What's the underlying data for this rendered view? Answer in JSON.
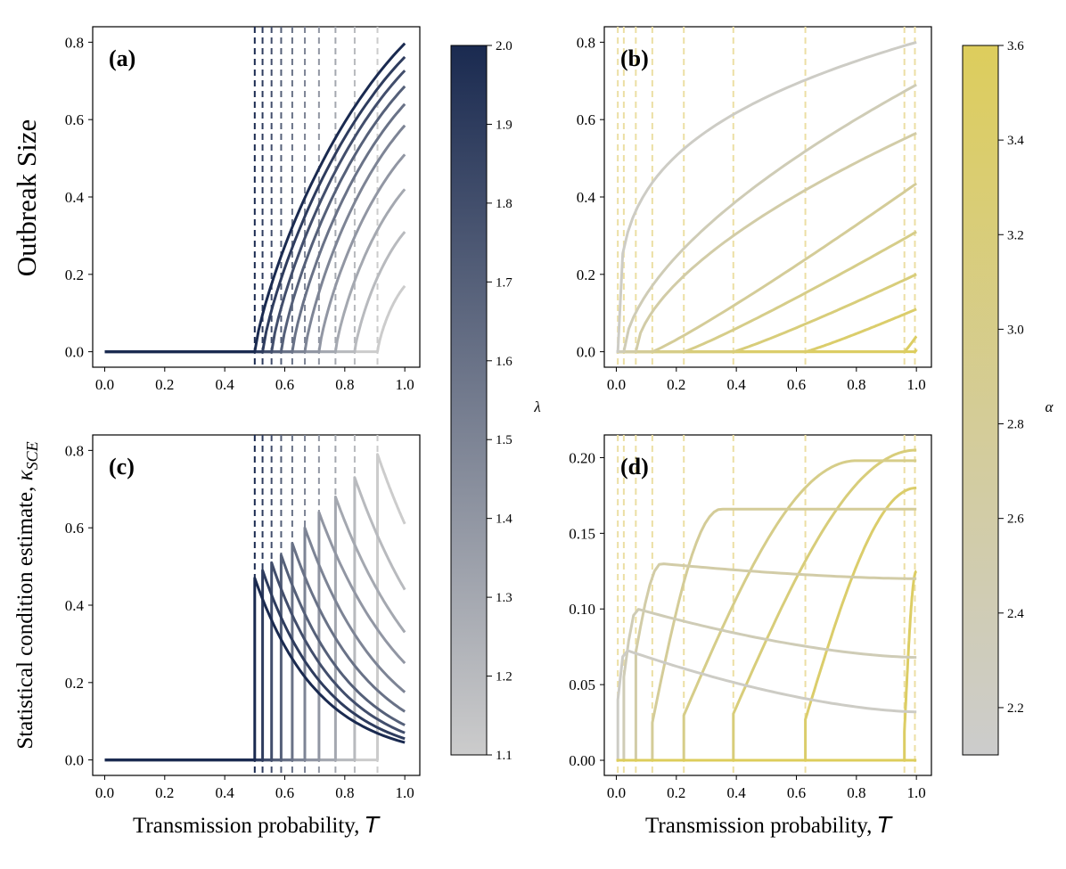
{
  "chart_data": [
    {
      "panel": "(a)",
      "type": "line",
      "xlabel": "",
      "ylabel": "Outbreak Size",
      "xlim": [
        -0.04,
        1.05
      ],
      "ylim": [
        -0.04,
        0.84
      ],
      "xticks": [
        "0.0",
        "0.2",
        "0.4",
        "0.6",
        "0.8",
        "1.0"
      ],
      "yticks": [
        "0.0",
        "0.2",
        "0.4",
        "0.6",
        "0.8"
      ],
      "colorbar_param": "lambda",
      "threshold_T": [
        0.5,
        0.526,
        0.556,
        0.588,
        0.625,
        0.667,
        0.714,
        0.769,
        0.833,
        0.909
      ],
      "param_values": [
        2.0,
        1.9,
        1.8,
        1.7,
        1.6,
        1.5,
        1.4,
        1.3,
        1.2,
        1.1
      ],
      "end_values_at_T1": [
        0.797,
        0.762,
        0.727,
        0.686,
        0.64,
        0.585,
        0.51,
        0.42,
        0.31,
        0.17
      ]
    },
    {
      "panel": "(b)",
      "type": "line",
      "xlabel": "",
      "ylabel": "",
      "xlim": [
        -0.04,
        1.05
      ],
      "ylim": [
        -0.04,
        0.84
      ],
      "xticks": [
        "0.0",
        "0.2",
        "0.4",
        "0.6",
        "0.8",
        "1.0"
      ],
      "yticks": [
        "0.0",
        "0.2",
        "0.4",
        "0.6",
        "0.8"
      ],
      "colorbar_param": "alpha",
      "threshold_T": [
        0.005,
        0.025,
        0.065,
        0.12,
        0.225,
        0.39,
        0.63,
        0.96,
        0.995
      ],
      "param_values": [
        2.2,
        2.4,
        2.6,
        2.8,
        3.0,
        3.2,
        3.4,
        3.5,
        3.6
      ],
      "end_values_at_T1": [
        0.8,
        0.69,
        0.565,
        0.435,
        0.31,
        0.2,
        0.11,
        0.04,
        0.005
      ]
    },
    {
      "panel": "(c)",
      "type": "line",
      "xlabel": "Transmission probability, T",
      "ylabel": "Statistical condition estimate, κSCE",
      "xlim": [
        -0.04,
        1.05
      ],
      "ylim": [
        -0.04,
        0.84
      ],
      "xticks": [
        "0.0",
        "0.2",
        "0.4",
        "0.6",
        "0.8",
        "1.0"
      ],
      "yticks": [
        "0.0",
        "0.2",
        "0.4",
        "0.6",
        "0.8"
      ],
      "colorbar_param": "lambda",
      "threshold_T": [
        0.5,
        0.526,
        0.556,
        0.588,
        0.625,
        0.667,
        0.714,
        0.769,
        0.833,
        0.909
      ],
      "peak_values": [
        0.47,
        0.49,
        0.51,
        0.53,
        0.56,
        0.6,
        0.64,
        0.68,
        0.73,
        0.79
      ],
      "end_values_at_T1": [
        0.045,
        0.055,
        0.07,
        0.09,
        0.125,
        0.175,
        0.25,
        0.33,
        0.44,
        0.61
      ]
    },
    {
      "panel": "(d)",
      "type": "line",
      "xlabel": "Transmission probability, T",
      "ylabel": "",
      "xlim": [
        -0.04,
        1.05
      ],
      "ylim": [
        -0.01,
        0.215
      ],
      "xticks": [
        "0.0",
        "0.2",
        "0.4",
        "0.6",
        "0.8",
        "1.0"
      ],
      "yticks": [
        "0.00",
        "0.05",
        "0.10",
        "0.15",
        "0.20"
      ],
      "colorbar_param": "alpha",
      "threshold_T": [
        0.005,
        0.025,
        0.065,
        0.12,
        0.225,
        0.39,
        0.63,
        0.96
      ],
      "peak_T": [
        0.03,
        0.07,
        0.15,
        0.35,
        0.8,
        1.0,
        1.0,
        1.0
      ],
      "peak_values": [
        0.073,
        0.1,
        0.13,
        0.166,
        0.198,
        0.205,
        0.18,
        0.125
      ],
      "end_values_at_T1": [
        0.032,
        0.068,
        0.12,
        0.166,
        0.198,
        0.205,
        0.18,
        0.125
      ]
    }
  ],
  "colorbars": {
    "lambda": {
      "label": "λ",
      "range": [
        1.1,
        2.0
      ],
      "ticks": [
        "1.1",
        "1.2",
        "1.3",
        "1.4",
        "1.5",
        "1.6",
        "1.7",
        "1.8",
        "1.9",
        "2.0"
      ],
      "color_low": "#cccccc",
      "color_high": "#1a2a50"
    },
    "alpha": {
      "label": "α",
      "range": [
        2.1,
        3.6
      ],
      "ticks": [
        "2.2",
        "2.4",
        "2.6",
        "2.8",
        "3.0",
        "3.2",
        "3.4",
        "3.6"
      ],
      "color_low": "#cccccc",
      "color_high": "#ddcd5c"
    }
  },
  "labels": {
    "panel_a": "(a)",
    "panel_b": "(b)",
    "panel_c": "(c)",
    "panel_d": "(d)",
    "outbreak_size": "Outbreak Size",
    "sce_prefix": "Statistical condition estimate, ",
    "sce_kappa": "κ",
    "sce_sub": "SCE",
    "xlabel_prefix": "Transmission probability, ",
    "xlabel_var": "T"
  }
}
